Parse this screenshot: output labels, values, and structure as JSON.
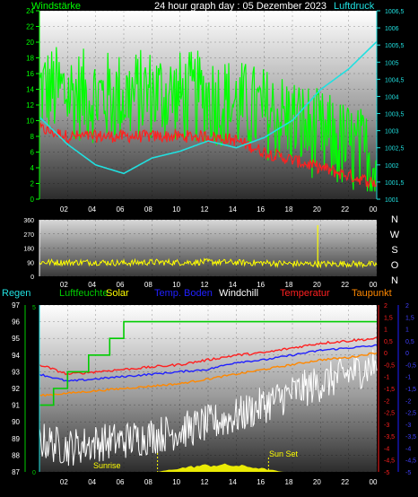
{
  "top_panel": {
    "title": "24 hour graph day : 05 Dezember 2023",
    "left_label": "Windstärke",
    "right_label": "Luftdruck",
    "left_ticks": [
      "0",
      "2",
      "4",
      "6",
      "8",
      "10",
      "12",
      "14",
      "16",
      "18",
      "20",
      "22",
      "24"
    ],
    "right_ticks": [
      "1001",
      "1001,5",
      "1002",
      "1002,5",
      "1003",
      "1003,5",
      "1004",
      "1004,5",
      "1005",
      "1005,5",
      "1006",
      "1006,5"
    ],
    "x_ticks": [
      "02",
      "04",
      "06",
      "08",
      "10",
      "12",
      "14",
      "16",
      "18",
      "20",
      "22",
      "00"
    ]
  },
  "mid_panel": {
    "left_ticks": [
      "0",
      "90",
      "180",
      "270",
      "360"
    ],
    "compass": [
      "N",
      "W",
      "S",
      "O",
      "N"
    ],
    "x_ticks": [
      "02",
      "04",
      "06",
      "08",
      "10",
      "12",
      "14",
      "16",
      "18",
      "20",
      "22",
      "00"
    ]
  },
  "bottom_panel": {
    "legend": [
      "Regen",
      "Luftfeuchte",
      "Solar",
      "Temp. Boden",
      "Windchill",
      "Temperatur",
      "Taupunkt"
    ],
    "left_ticks": [
      "87",
      "88",
      "89",
      "90",
      "91",
      "92",
      "93",
      "94",
      "95",
      "96",
      "97"
    ],
    "green_axis_ticks": [
      "0",
      "5"
    ],
    "right_ticks_red": [
      "2",
      "1,5",
      "1",
      "0,5",
      "0",
      "-0,5",
      "-1",
      "-1,5",
      "-2",
      "-2,5",
      "-3",
      "-3,5",
      "-4",
      "-4,5",
      "-5"
    ],
    "right_ticks_blue": [
      "2",
      "1,5",
      "1",
      "0,5",
      "0",
      "-0,5",
      "-1",
      "-1,5",
      "-2",
      "-2,5",
      "-3",
      "-3,5",
      "-4",
      "-4,5",
      "-5"
    ],
    "annotations": [
      "Sunrise",
      "Sun Set"
    ],
    "x_ticks": [
      "02",
      "04",
      "06",
      "08",
      "10",
      "12",
      "14",
      "16",
      "18",
      "20",
      "22",
      "00"
    ]
  },
  "colors": {
    "wind": "#00ff00",
    "gust": "#ff2020",
    "pressure": "#20e0e0",
    "direction": "#ffff00",
    "humidity": "#00cc00",
    "temp_boden": "#2020ff",
    "windchill": "#ffffff",
    "temperatur": "#ff2020",
    "taupunkt": "#ff8800",
    "solar": "#ffff00"
  },
  "chart_data": [
    {
      "type": "line",
      "title": "24 hour graph day : 05 Dezember 2023",
      "xlabel": "",
      "ylabel": "Windstärke",
      "y2label": "Luftdruck",
      "x": [
        "00",
        "02",
        "04",
        "06",
        "08",
        "10",
        "12",
        "14",
        "16",
        "18",
        "20",
        "22",
        "00"
      ],
      "ylim": [
        0,
        24
      ],
      "y2lim": [
        1001,
        1006.5
      ],
      "series": [
        {
          "name": "Windstärke",
          "axis": "left",
          "values": [
            14,
            13.5,
            13,
            13,
            13.5,
            13,
            13,
            12,
            11,
            10,
            8,
            6.5,
            5
          ]
        },
        {
          "name": "",
          "axis": "left",
          "values": [
            9,
            8,
            8,
            8,
            8,
            8,
            8,
            7.5,
            6,
            5,
            4,
            3,
            2
          ]
        },
        {
          "name": "Luftdruck",
          "axis": "right",
          "values": [
            1003.4,
            1002.6,
            1002.0,
            1001.75,
            1002.2,
            1002.4,
            1002.7,
            1002.5,
            1002.8,
            1003.3,
            1004.2,
            1004.8,
            1005.6
          ]
        }
      ]
    },
    {
      "type": "line",
      "title": "",
      "x": [
        "00",
        "02",
        "04",
        "06",
        "08",
        "10",
        "12",
        "14",
        "16",
        "18",
        "20",
        "22",
        "00"
      ],
      "ylim": [
        0,
        360
      ],
      "series": [
        {
          "name": "",
          "values": [
            90,
            88,
            90,
            85,
            90,
            88,
            92,
            88,
            85,
            80,
            78,
            80,
            75
          ]
        }
      ]
    },
    {
      "type": "line",
      "title": "",
      "x": [
        "00",
        "02",
        "04",
        "06",
        "08",
        "10",
        "12",
        "14",
        "16",
        "18",
        "20",
        "22",
        "00"
      ],
      "ylim": [
        87,
        97
      ],
      "y2lim": [
        -5,
        2
      ],
      "series": [
        {
          "name": "Luftfeuchte",
          "axis": "left",
          "values": [
            90.8,
            92.6,
            94.0,
            95.5,
            96.3,
            96.3,
            96.3,
            96.3,
            96.3,
            96.3,
            96.3,
            96.3,
            96.3
          ]
        },
        {
          "name": "Temp. Boden",
          "axis": "right",
          "values": [
            -0.9,
            -1.2,
            -1.1,
            -1.0,
            -0.9,
            -0.8,
            -0.7,
            -0.4,
            -0.3,
            -0.1,
            0.1,
            0.2,
            0.3
          ]
        },
        {
          "name": "Temperatur",
          "axis": "right",
          "values": [
            -0.5,
            -0.9,
            -0.8,
            -0.7,
            -0.6,
            -0.5,
            -0.3,
            -0.1,
            0.0,
            0.2,
            0.4,
            0.5,
            0.6
          ]
        },
        {
          "name": "Taupunkt",
          "axis": "right",
          "values": [
            -1.8,
            -1.7,
            -1.6,
            -1.5,
            -1.4,
            -1.3,
            -1.1,
            -0.9,
            -0.7,
            -0.5,
            -0.3,
            -0.2,
            0.0
          ]
        },
        {
          "name": "Windchill",
          "axis": "right",
          "values": [
            -4.0,
            -4.3,
            -4.1,
            -4.0,
            -3.8,
            -3.6,
            -3.3,
            -3.0,
            -2.5,
            -2.0,
            -1.6,
            -1.2,
            -0.8
          ]
        }
      ]
    }
  ]
}
